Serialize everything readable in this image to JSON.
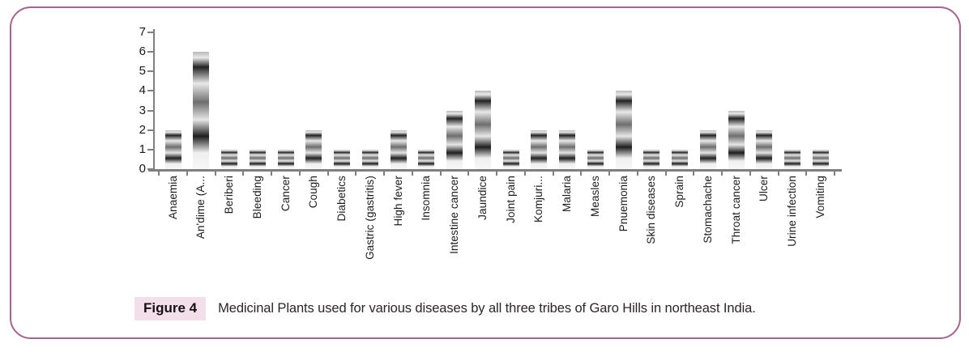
{
  "figure": {
    "tag": "Figure 4",
    "caption": "Medicinal Plants used for various diseases by all three tribes of Garo Hills in northeast India."
  },
  "chart_data": {
    "type": "bar",
    "title": "Medicinal Plants used for various diseases by all three tribes of Garo Hills in northeast India",
    "categories": [
      "Anaemia",
      "An'dime (A...",
      "Beriberi",
      "Bleeding",
      "Cancer",
      "Cough",
      "Diabetics",
      "Gastric (gastritis)",
      "High fever",
      "Insomnia",
      "Intestine cancer",
      "Jaundice",
      "Joint pain",
      "Komjuri...",
      "Malaria",
      "Measles",
      "Pnuemonia",
      "Skin diseases",
      "Sprain",
      "Stomachache",
      "Throat cancer",
      "Ulcer",
      "Urine infection",
      "Vomiting"
    ],
    "values": [
      2,
      6,
      1,
      1,
      1,
      2,
      1,
      1,
      2,
      1,
      3,
      4,
      1,
      2,
      2,
      1,
      4,
      1,
      1,
      2,
      3,
      2,
      1,
      1
    ],
    "xlabel": "",
    "ylabel": "",
    "ylim": [
      0,
      7
    ],
    "yticks": [
      0,
      1,
      2,
      3,
      4,
      5,
      6,
      7
    ],
    "grid": false,
    "legend": false,
    "bar_style": "vertical grayscale banded gradient (Excel-style)"
  },
  "colors": {
    "frame_border": "#a5648e",
    "axis": "#7f7f7f",
    "tick_text": "#1a1a1a",
    "caption_text": "#2b2627",
    "figure_tag_bg": "#f2dfe9"
  }
}
